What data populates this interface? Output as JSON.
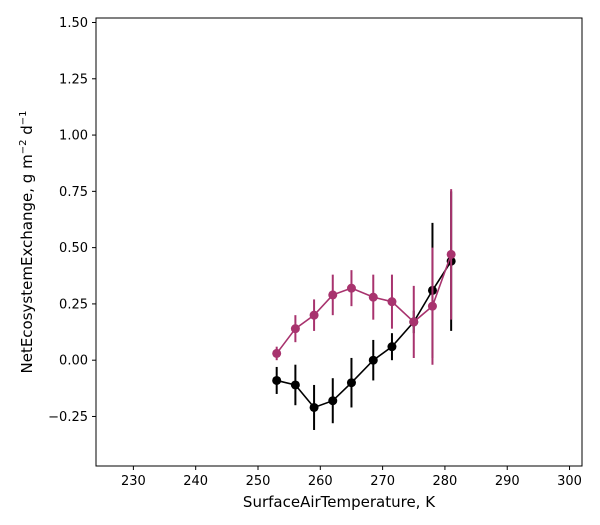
{
  "chart_data": {
    "type": "scatter",
    "xlabel": "SurfaceAirTemperature,  K",
    "ylabel_main": "NetEcosystemExchange,  g m",
    "ylabel_sup1": "−2",
    "ylabel_mid": " d",
    "ylabel_sup2": "−1",
    "xlim": [
      224,
      302
    ],
    "ylim": [
      -0.47,
      1.52
    ],
    "xticks": [
      230,
      240,
      250,
      260,
      270,
      280,
      290,
      300
    ],
    "yticks": [
      -0.25,
      0.0,
      0.25,
      0.5,
      0.75,
      1.0,
      1.25,
      1.5
    ],
    "ytick_labels": [
      "−0.25",
      "0.00",
      "0.25",
      "0.50",
      "0.75",
      "1.00",
      "1.25",
      "1.50"
    ],
    "grid": false,
    "legend": "none",
    "series": [
      {
        "color": "#000000",
        "x": [
          253,
          256,
          259,
          262,
          265,
          268.5,
          271.5,
          275,
          278,
          281
        ],
        "y": [
          -0.09,
          -0.11,
          -0.21,
          -0.18,
          -0.1,
          0.0,
          0.06,
          0.17,
          0.31,
          0.44
        ],
        "err": [
          0.06,
          0.09,
          0.1,
          0.1,
          0.11,
          0.09,
          0.06,
          0.05,
          0.3,
          0.31
        ]
      },
      {
        "color": "#a8336e",
        "x": [
          253,
          256,
          259,
          262,
          265,
          268.5,
          271.5,
          275,
          278,
          281
        ],
        "y": [
          0.03,
          0.14,
          0.2,
          0.29,
          0.32,
          0.28,
          0.26,
          0.17,
          0.24,
          0.47
        ],
        "err": [
          0.03,
          0.06,
          0.07,
          0.09,
          0.08,
          0.1,
          0.12,
          0.16,
          0.26,
          0.29
        ]
      }
    ]
  }
}
